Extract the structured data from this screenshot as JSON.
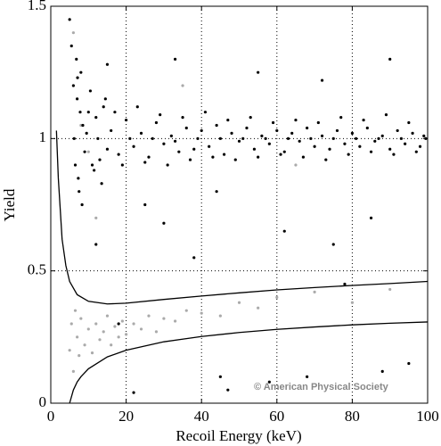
{
  "chart_data": {
    "type": "scatter",
    "xlabel": "Recoil Energy (keV)",
    "ylabel": "Yield",
    "xlim": [
      0,
      100
    ],
    "ylim": [
      0,
      1.5
    ],
    "xticks": [
      0,
      20,
      40,
      60,
      80,
      100
    ],
    "yticks": [
      0,
      0.5,
      1,
      1.5
    ],
    "grid": true,
    "annotation": "© American Physical Society",
    "series": [
      {
        "mode": "markers",
        "color": "#aaaaaa",
        "x": [
          5,
          5.5,
          6,
          6.5,
          7,
          7.5,
          8,
          9,
          10,
          11,
          12,
          13,
          14,
          15,
          16,
          17,
          18,
          19,
          20,
          22,
          24,
          26,
          28,
          30,
          33,
          36,
          40,
          45,
          50,
          55,
          60,
          70,
          80,
          90,
          6,
          8,
          10,
          12,
          35,
          65
        ],
        "values": [
          0.2,
          0.3,
          0.12,
          0.35,
          0.25,
          0.18,
          0.32,
          0.22,
          0.28,
          0.19,
          0.3,
          0.24,
          0.27,
          0.33,
          0.22,
          0.29,
          0.25,
          0.31,
          0.26,
          0.3,
          0.28,
          0.33,
          0.27,
          0.32,
          0.31,
          0.35,
          0.34,
          0.33,
          0.38,
          0.36,
          0.4,
          0.42,
          0.38,
          0.43,
          1.4,
          1.05,
          0.95,
          0.7,
          1.2,
          0.9
        ]
      },
      {
        "mode": "markers",
        "color": "#000000",
        "x": [
          5.5,
          6,
          6.5,
          7,
          7.5,
          8,
          8.5,
          9,
          10,
          11,
          12,
          13,
          14,
          15,
          16,
          18,
          20,
          22,
          24,
          26,
          28,
          30,
          32,
          34,
          36,
          38,
          40,
          42,
          44,
          46,
          48,
          50,
          52,
          54,
          56,
          58,
          60,
          62,
          64,
          66,
          68,
          70,
          72,
          74,
          76,
          78,
          80,
          82,
          84,
          86,
          88,
          90,
          92,
          94,
          96,
          98,
          99
        ],
        "values": [
          1.35,
          1.2,
          0.9,
          1.15,
          0.8,
          1.25,
          1.05,
          0.95,
          1.1,
          0.9,
          1.08,
          0.92,
          1.12,
          0.96,
          1.03,
          0.94,
          1.07,
          0.97,
          1.02,
          0.93,
          1.06,
          0.98,
          1.01,
          0.95,
          1.04,
          0.96,
          1.03,
          0.97,
          1.05,
          0.94,
          1.02,
          0.99,
          1.04,
          0.96,
          1.01,
          0.98,
          1.03,
          0.95,
          1.02,
          0.99,
          1.04,
          0.97,
          1.01,
          0.96,
          1.03,
          0.98,
          1.02,
          0.97,
          1.04,
          0.99,
          1.01,
          0.96,
          1.03,
          0.98,
          1.02,
          0.97,
          1.01
        ]
      },
      {
        "mode": "markers",
        "color": "#000000",
        "x": [
          5,
          6.2,
          6.8,
          7.3,
          7.8,
          8.3,
          9.5,
          10.5,
          11.5,
          12.5,
          13.5,
          14.5,
          17,
          19,
          21,
          23,
          25,
          27,
          29,
          31,
          33,
          35,
          37,
          39,
          41,
          43,
          45,
          47,
          49,
          51,
          53,
          55,
          57,
          59,
          61,
          63,
          65,
          67,
          69,
          71,
          73,
          75,
          77,
          79,
          81,
          83,
          85,
          87,
          89,
          91,
          93,
          95,
          97,
          99.5,
          7.1,
          15,
          45
        ],
        "values": [
          1.45,
          1.0,
          1.3,
          0.85,
          1.1,
          0.75,
          1.02,
          1.18,
          0.88,
          1.0,
          0.83,
          1.15,
          1.1,
          0.9,
          1.0,
          1.12,
          0.91,
          1.0,
          1.09,
          0.9,
          0.99,
          1.08,
          0.92,
          1.0,
          1.1,
          0.93,
          1.0,
          1.07,
          0.92,
          1.0,
          1.08,
          0.93,
          1.0,
          1.06,
          0.94,
          1.0,
          1.07,
          0.93,
          1.0,
          1.06,
          0.92,
          1.0,
          1.08,
          0.94,
          1.0,
          1.07,
          0.95,
          1.0,
          1.09,
          0.94,
          1.0,
          1.06,
          0.95,
          1.0,
          1.23,
          1.28,
          0.1
        ]
      },
      {
        "mode": "markers",
        "color": "#000000",
        "x": [
          12,
          18,
          25,
          33,
          38,
          47,
          55,
          62,
          68,
          72,
          78,
          85,
          90,
          95,
          22,
          44,
          58,
          75,
          88,
          30
        ],
        "values": [
          0.6,
          0.3,
          0.75,
          1.3,
          0.55,
          0.05,
          1.25,
          0.65,
          0.1,
          1.22,
          0.45,
          0.7,
          1.3,
          0.15,
          0.04,
          0.8,
          0.08,
          0.6,
          0.12,
          0.68
        ]
      },
      {
        "mode": "line",
        "color": "#000000",
        "x": [
          1.5,
          2,
          3,
          4,
          5,
          7,
          10,
          15,
          20,
          30,
          40,
          50,
          60,
          70,
          80,
          90,
          100
        ],
        "values": [
          1.03,
          0.85,
          0.62,
          0.52,
          0.46,
          0.41,
          0.385,
          0.375,
          0.378,
          0.392,
          0.405,
          0.417,
          0.428,
          0.437,
          0.445,
          0.452,
          0.46
        ]
      },
      {
        "mode": "line",
        "color": "#000000",
        "x": [
          5,
          6,
          7,
          8,
          10,
          15,
          20,
          30,
          40,
          50,
          60,
          70,
          80,
          90,
          100
        ],
        "values": [
          0,
          0.05,
          0.08,
          0.1,
          0.13,
          0.175,
          0.2,
          0.232,
          0.252,
          0.267,
          0.279,
          0.288,
          0.296,
          0.302,
          0.307
        ]
      }
    ]
  }
}
